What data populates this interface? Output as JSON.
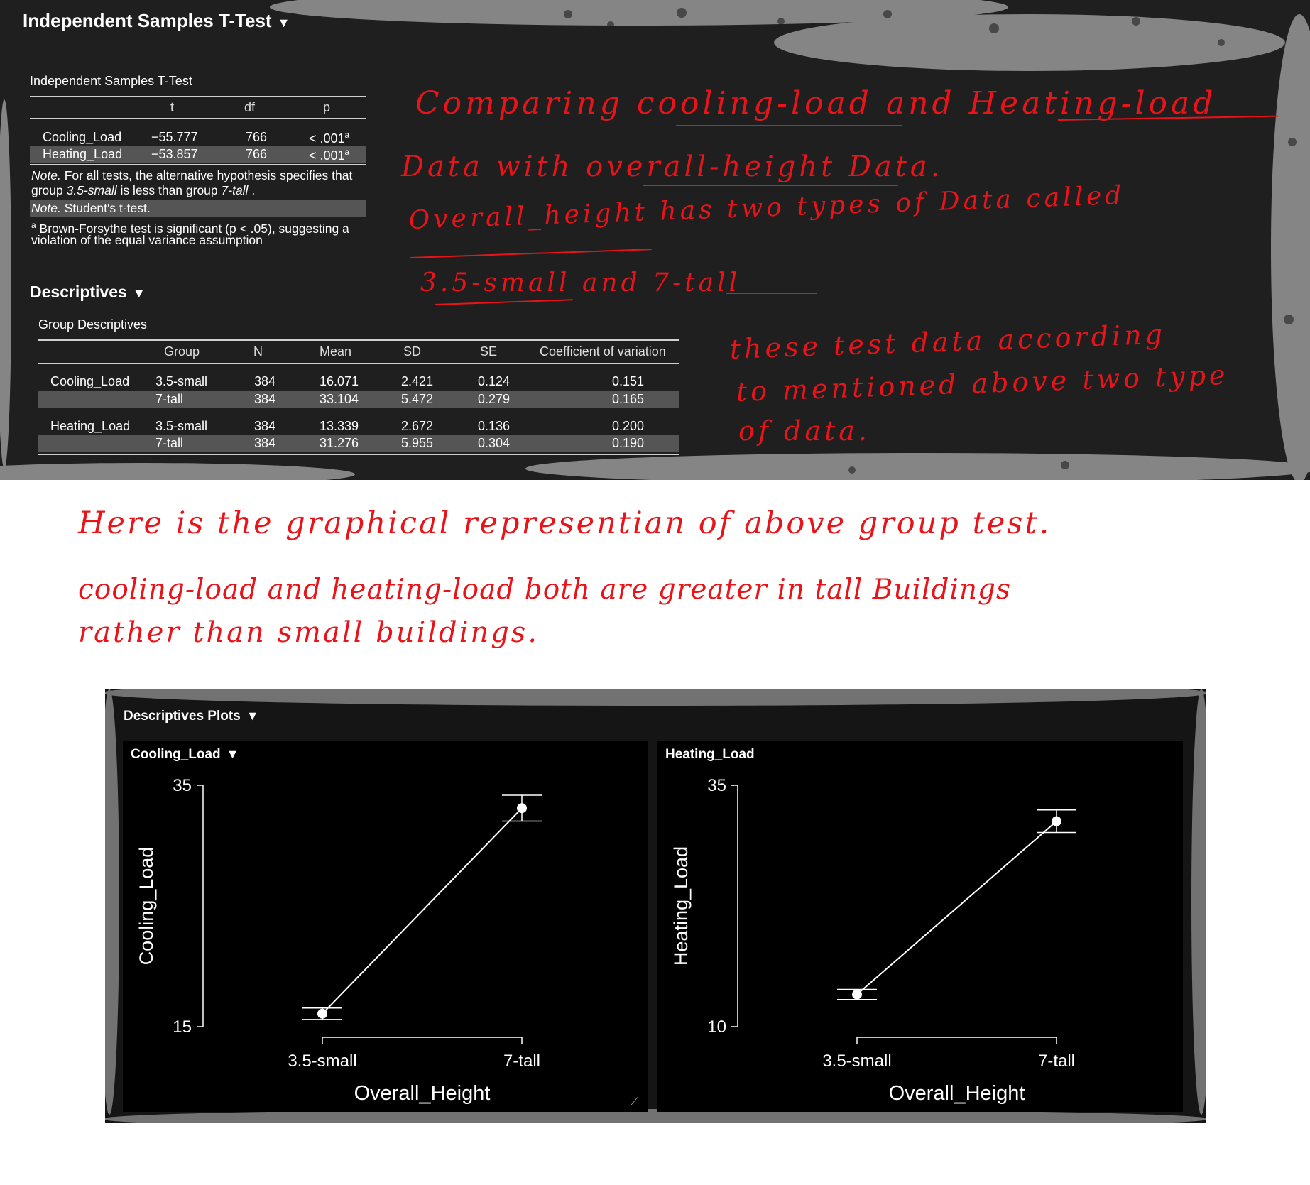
{
  "ttest": {
    "heading": "Independent Samples T-Test",
    "table_title": "Independent Samples T-Test",
    "columns": [
      "",
      "t",
      "df",
      "p"
    ],
    "rows": [
      {
        "name": "Cooling_Load",
        "t": "−55.777",
        "df": "766",
        "p": "< .001",
        "sup": "a"
      },
      {
        "name": "Heating_Load",
        "t": "−53.857",
        "df": "766",
        "p": "< .001",
        "sup": "a"
      }
    ],
    "note1_label": "Note.",
    "note1_text": " For all tests, the alternative hypothesis specifies that",
    "note1_line2_pre": "group ",
    "note1_group1": "3.5-small",
    "note1_mid": " is less than group ",
    "note1_group2": "7-tall",
    "note1_end": " .",
    "note2_label": "Note.",
    "note2_text": " Student's t-test.",
    "note3_sup": "a",
    "note3_line1": " Brown-Forsythe test is significant (p < .05), suggesting a",
    "note3_line2": "violation of the equal variance assumption"
  },
  "descriptives": {
    "heading": "Descriptives",
    "table_title": "Group Descriptives",
    "columns": [
      "",
      "Group",
      "N",
      "Mean",
      "SD",
      "SE",
      "Coefficient of variation"
    ],
    "rows": [
      {
        "name": "Cooling_Load",
        "group": "3.5-small",
        "n": "384",
        "mean": "16.071",
        "sd": "2.421",
        "se": "0.124",
        "cv": "0.151"
      },
      {
        "name": "",
        "group": "7-tall",
        "n": "384",
        "mean": "33.104",
        "sd": "5.472",
        "se": "0.279",
        "cv": "0.165"
      },
      {
        "name": "Heating_Load",
        "group": "3.5-small",
        "n": "384",
        "mean": "13.339",
        "sd": "2.672",
        "se": "0.136",
        "cv": "0.200"
      },
      {
        "name": "",
        "group": "7-tall",
        "n": "384",
        "mean": "31.276",
        "sd": "5.955",
        "se": "0.304",
        "cv": "0.190"
      }
    ]
  },
  "annotations": {
    "line1": "Comparing cooling-load and Heating-load",
    "line2": "Data with overall-height Data.",
    "line3": "Overall_height has two types of Data called",
    "line4": "3.5-small and 7-tall",
    "side1": "these test data according",
    "side2": "to mentioned above two type",
    "side3": "of data.",
    "bottom1": "Here is the graphical representian of above group test.",
    "bottom2": "cooling-load and heating-load both are greater in tall Buildings",
    "bottom3": "rather than small buildings."
  },
  "plots": {
    "heading": "Descriptives Plots",
    "charts_icon": "resize-grip-icon"
  },
  "chart_data": [
    {
      "type": "line",
      "title": "Cooling_Load",
      "xlabel": "Overall_Height",
      "ylabel": "Cooling_Load",
      "categories": [
        "3.5-small",
        "7-tall"
      ],
      "values": [
        16.071,
        33.104
      ],
      "error": [
        0.243,
        0.547
      ],
      "ylim": [
        15,
        35
      ],
      "yticks": [
        "35",
        "15"
      ],
      "grid": false
    },
    {
      "type": "line",
      "title": "Heating_Load",
      "xlabel": "Overall_Height",
      "ylabel": "Heating_Load",
      "categories": [
        "3.5-small",
        "7-tall"
      ],
      "values": [
        13.339,
        31.276
      ],
      "error": [
        0.267,
        0.596
      ],
      "ylim": [
        10,
        35
      ],
      "yticks": [
        "35",
        "10"
      ],
      "grid": false
    }
  ]
}
